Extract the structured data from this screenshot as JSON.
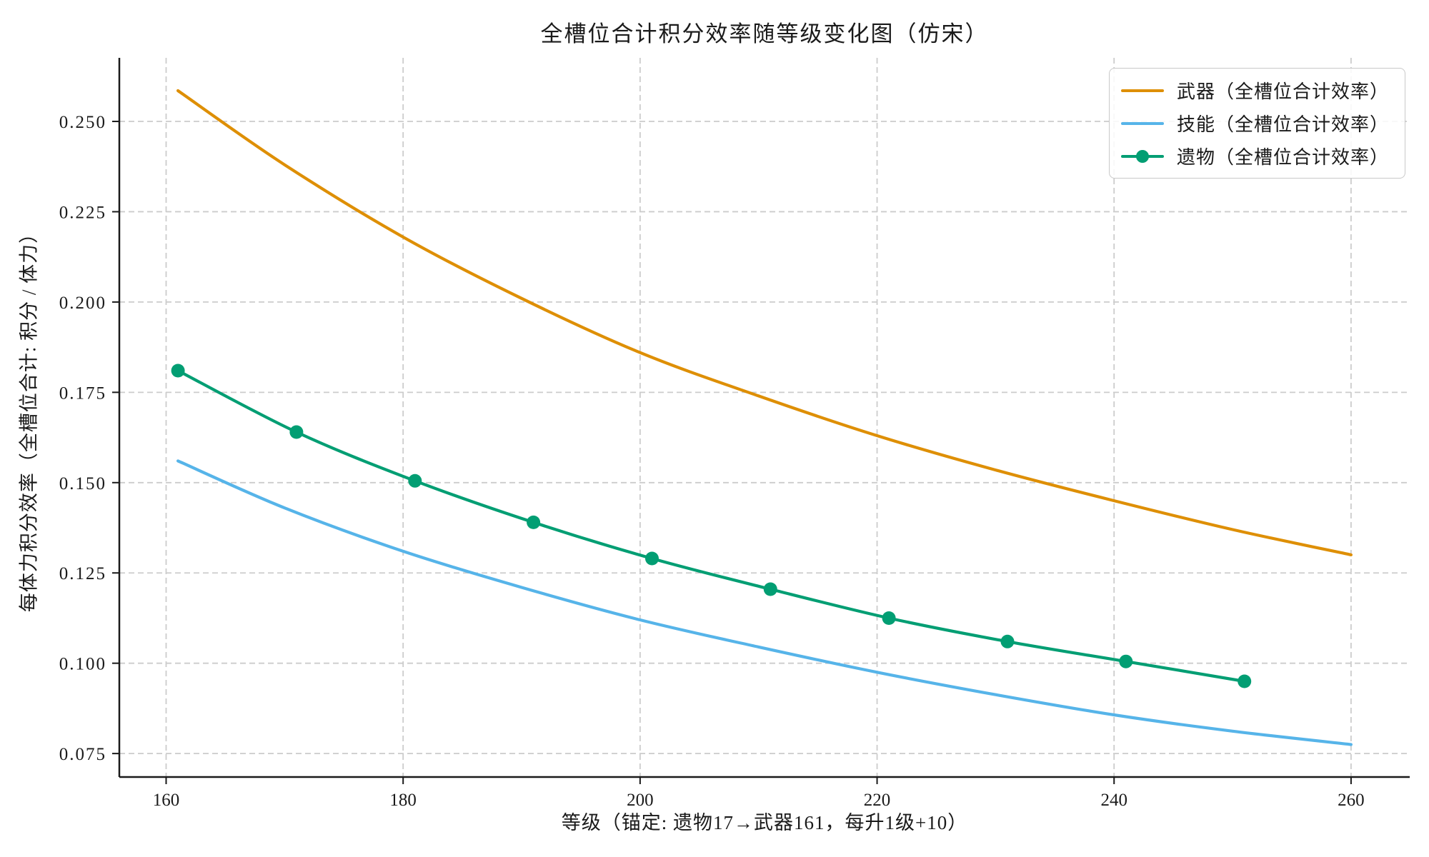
{
  "title": "全槽位合计积分效率随等级变化图（仿宋）",
  "xlabel": "等级（锚定: 遗物17→武器161，每升1级+10）",
  "ylabel": "每体力积分效率（全槽位合计: 积分 / 体力）",
  "colors": {
    "weapon": "#DE8F05",
    "skill": "#56B4E9",
    "relic": "#029E73",
    "grid": "#cccccc",
    "spine": "#1a1a1a",
    "text": "#1a1a1a",
    "legend_border": "#c9c9c9"
  },
  "legend": [
    {
      "label": "武器（全槽位合计效率）",
      "color": "#DE8F05",
      "marker": "none"
    },
    {
      "label": "技能（全槽位合计效率）",
      "color": "#56B4E9",
      "marker": "none"
    },
    {
      "label": "遗物（全槽位合计效率）",
      "color": "#029E73",
      "marker": "circle"
    }
  ],
  "chart_data": {
    "type": "line",
    "title": "全槽位合计积分效率随等级变化图（仿宋）",
    "xlabel": "等级（锚定: 遗物17→武器161，每升1级+10）",
    "ylabel": "每体力积分效率（全槽位合计: 积分 / 体力）",
    "xlim": [
      156.05,
      264.95
    ],
    "ylim": [
      0.0685,
      0.2676
    ],
    "xticks": [
      160,
      180,
      200,
      220,
      240,
      260
    ],
    "yticks": [
      0.075,
      0.1,
      0.125,
      0.15,
      0.175,
      0.2,
      0.225,
      0.25
    ],
    "grid": "dashed",
    "legend_position": "upper right",
    "series": [
      {
        "name": "武器（全槽位合计效率）",
        "color": "#DE8F05",
        "marker": "none",
        "x": [
          161,
          170,
          180,
          190,
          200,
          210,
          220,
          230,
          240,
          250,
          260
        ],
        "y": [
          0.2585,
          0.238,
          0.218,
          0.201,
          0.186,
          0.174,
          0.163,
          0.1535,
          0.145,
          0.137,
          0.13
        ]
      },
      {
        "name": "技能（全槽位合计效率）",
        "color": "#56B4E9",
        "marker": "none",
        "x": [
          161,
          170,
          180,
          190,
          200,
          210,
          220,
          230,
          240,
          250,
          260
        ],
        "y": [
          0.156,
          0.143,
          0.131,
          0.121,
          0.112,
          0.1045,
          0.0975,
          0.0913,
          0.0857,
          0.0812,
          0.0775
        ]
      },
      {
        "name": "遗物（全槽位合计效率）",
        "color": "#029E73",
        "marker": "circle",
        "x": [
          161,
          171,
          181,
          191,
          201,
          211,
          221,
          231,
          241,
          251
        ],
        "y": [
          0.181,
          0.164,
          0.1505,
          0.139,
          0.129,
          0.1205,
          0.1125,
          0.106,
          0.1005,
          0.095
        ]
      }
    ]
  }
}
